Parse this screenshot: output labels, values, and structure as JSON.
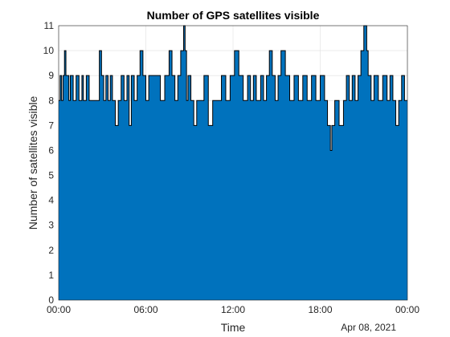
{
  "chart_data": {
    "type": "area",
    "title": "Number of GPS satellites visible",
    "xlabel": "Time",
    "ylabel": "Number of satellites visible",
    "date_label": "Apr 08, 2021",
    "x_tick_labels": [
      "00:00",
      "06:00",
      "12:00",
      "18:00",
      "00:00"
    ],
    "x_ticks_hours": [
      0,
      6,
      12,
      18,
      24
    ],
    "xlim_hours": [
      0,
      24
    ],
    "ylim": [
      0,
      11
    ],
    "y_ticks": [
      0,
      1,
      2,
      3,
      4,
      5,
      6,
      7,
      8,
      9,
      10,
      11
    ],
    "grid": true,
    "fill_color": "#0072BD",
    "edge_color": "#000000",
    "series": [
      {
        "x_hours": [
          0,
          0.1,
          0.2,
          0.3,
          0.4,
          0.5,
          0.7,
          0.8,
          1.0,
          1.2,
          1.4,
          1.6,
          1.7,
          1.9,
          2.1,
          2.8,
          2.95,
          3.1,
          3.25,
          3.4,
          3.55,
          3.7,
          3.9,
          4.1,
          4.3,
          4.5,
          4.7,
          4.85,
          5.0,
          5.2,
          5.4,
          5.6,
          5.8,
          6.0,
          6.2,
          6.5,
          7.0,
          7.3,
          7.6,
          7.8,
          8.0,
          8.2,
          8.4,
          8.6,
          8.7,
          8.8,
          8.9,
          9.1,
          9.3,
          9.5,
          9.7,
          10.0,
          10.3,
          10.6,
          11.2,
          11.5,
          11.8,
          12.1,
          12.4,
          12.7,
          13.0,
          13.2,
          13.4,
          13.6,
          13.9,
          14.1,
          14.3,
          14.5,
          14.7,
          14.9,
          15.1,
          15.3,
          15.6,
          15.9,
          16.2,
          16.5,
          16.8,
          17.1,
          17.4,
          17.7,
          18.0,
          18.3,
          18.5,
          18.7,
          18.8,
          19.0,
          19.3,
          19.6,
          19.8,
          20.0,
          20.2,
          20.4,
          20.6,
          20.8,
          21.0,
          21.2,
          21.3,
          21.5,
          21.7,
          22.0,
          22.3,
          22.6,
          22.8,
          23.0,
          23.2,
          23.4,
          23.6,
          23.8,
          24.0
        ],
        "y": [
          8,
          9,
          8,
          9,
          10,
          9,
          8,
          9,
          8,
          9,
          8,
          9,
          8,
          9,
          8,
          10,
          9,
          8,
          9,
          8,
          9,
          8,
          7,
          8,
          9,
          8,
          9,
          7,
          9,
          8,
          9,
          10,
          9,
          8,
          9,
          9,
          8,
          9,
          10,
          9,
          8,
          9,
          10,
          11,
          10,
          8,
          9,
          8,
          7,
          8,
          8,
          9,
          7,
          8,
          9,
          8,
          9,
          10,
          9,
          8,
          9,
          8,
          9,
          8,
          9,
          8,
          9,
          10,
          9,
          8,
          9,
          10,
          9,
          8,
          9,
          8,
          9,
          8,
          9,
          8,
          9,
          8,
          7,
          6,
          7,
          8,
          7,
          8,
          9,
          8,
          9,
          8,
          9,
          10,
          11,
          10,
          9,
          8,
          9,
          8,
          9,
          8,
          9,
          8,
          7,
          8,
          9,
          8,
          8
        ]
      }
    ]
  }
}
